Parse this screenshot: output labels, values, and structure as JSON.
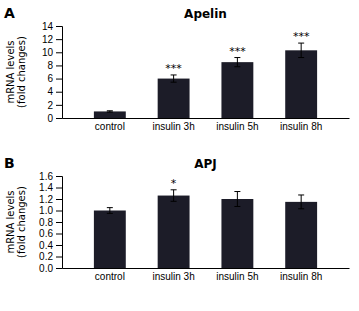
{
  "chart_data": [
    {
      "type": "bar",
      "title": "Apelin",
      "panel_label": "A",
      "ylabel": "mRNA levels\n(fold changes)",
      "categories": [
        "control",
        "insulin 3h",
        "insulin 5h",
        "insulin 8h"
      ],
      "values": [
        1.0,
        6.0,
        8.5,
        10.3
      ],
      "errors": [
        0.1,
        0.55,
        0.7,
        1.1
      ],
      "ylim": [
        0,
        14
      ],
      "yticks": [
        0,
        2,
        4,
        6,
        8,
        10,
        12,
        14
      ],
      "annotations": [
        {
          "text": "***",
          "x": "insulin 3h"
        },
        {
          "text": "***",
          "x": "insulin 5h"
        },
        {
          "text": "***",
          "x": "insulin 8h"
        }
      ],
      "color": "#1c1c28",
      "grid": false
    },
    {
      "type": "bar",
      "title": "APJ",
      "panel_label": "B",
      "ylabel": "mRNA levels\n(fold changes)",
      "categories": [
        "control",
        "insulin 3h",
        "insulin 5h",
        "insulin 8h"
      ],
      "values": [
        1.0,
        1.26,
        1.2,
        1.15
      ],
      "errors": [
        0.05,
        0.1,
        0.13,
        0.12
      ],
      "ylim": [
        0,
        1.6
      ],
      "yticks": [
        {
          "value": 0,
          "label": "0.0"
        },
        0.2,
        0.4,
        0.6,
        0.8,
        {
          "value": 1.0,
          "label": "1.0"
        },
        1.2,
        1.4,
        1.6
      ],
      "annotations": [
        {
          "text": "*",
          "x": "insulin 3h"
        }
      ],
      "color": "#1c1c28",
      "grid": false
    }
  ]
}
